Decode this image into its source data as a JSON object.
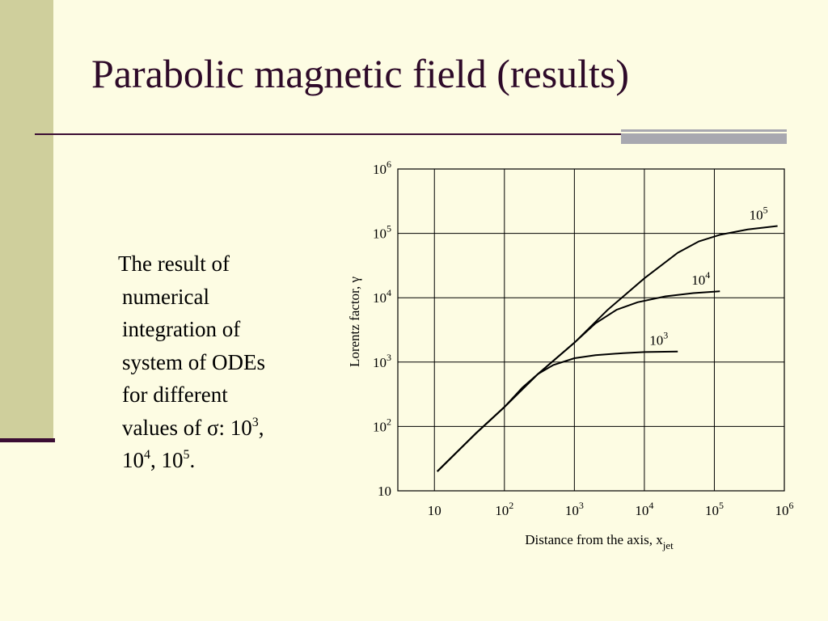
{
  "slide": {
    "title": "Parabolic magnetic field (results)",
    "body": {
      "line1": "The result of",
      "line2": "numerical",
      "line3": "integration of",
      "line4": "system of ODEs",
      "line5": "for different",
      "line6_prefix": "values of σ: 10",
      "line6_exp": "3",
      "line6_suffix": ",",
      "line7_base1": "10",
      "line7_exp1": "4",
      "line7_mid": ", 10",
      "line7_exp2": "5",
      "line7_suffix": "."
    }
  },
  "chart_data": {
    "type": "line",
    "xscale": "log",
    "yscale": "log",
    "xlim": [
      3,
      1000000
    ],
    "ylim": [
      10,
      1000000
    ],
    "grid": true,
    "xlabel": "Distance from the axis, x",
    "xlabel_subscript": "jet",
    "ylabel": "Lorentz factor, γ",
    "x_ticks": [
      {
        "value": 10,
        "base": "10",
        "exp": ""
      },
      {
        "value": 100,
        "base": "10",
        "exp": "2"
      },
      {
        "value": 1000,
        "base": "10",
        "exp": "3"
      },
      {
        "value": 10000,
        "base": "10",
        "exp": "4"
      },
      {
        "value": 100000,
        "base": "10",
        "exp": "5"
      },
      {
        "value": 1000000,
        "base": "10",
        "exp": "6"
      }
    ],
    "y_ticks": [
      {
        "value": 10,
        "base": "10",
        "exp": ""
      },
      {
        "value": 100,
        "base": "10",
        "exp": "2"
      },
      {
        "value": 1000,
        "base": "10",
        "exp": "3"
      },
      {
        "value": 10000,
        "base": "10",
        "exp": "4"
      },
      {
        "value": 100000,
        "base": "10",
        "exp": "5"
      },
      {
        "value": 1000000,
        "base": "10",
        "exp": "6"
      }
    ],
    "series": [
      {
        "label_base": "10",
        "label_exp": "3",
        "points": [
          [
            11,
            20
          ],
          [
            20,
            38
          ],
          [
            40,
            80
          ],
          [
            100,
            200
          ],
          [
            180,
            400
          ],
          [
            300,
            650
          ],
          [
            500,
            900
          ],
          [
            1000,
            1150
          ],
          [
            2000,
            1280
          ],
          [
            5000,
            1380
          ],
          [
            10000,
            1430
          ],
          [
            30000,
            1460
          ]
        ]
      },
      {
        "label_base": "10",
        "label_exp": "4",
        "points": [
          [
            11,
            20
          ],
          [
            40,
            80
          ],
          [
            100,
            200
          ],
          [
            300,
            650
          ],
          [
            1000,
            2000
          ],
          [
            2000,
            4000
          ],
          [
            4000,
            6500
          ],
          [
            8000,
            8500
          ],
          [
            20000,
            10500
          ],
          [
            50000,
            11800
          ],
          [
            120000,
            12600
          ]
        ]
      },
      {
        "label_base": "10",
        "label_exp": "5",
        "points": [
          [
            11,
            20
          ],
          [
            40,
            80
          ],
          [
            100,
            200
          ],
          [
            300,
            650
          ],
          [
            1000,
            2000
          ],
          [
            3000,
            6500
          ],
          [
            10000,
            20000
          ],
          [
            30000,
            50000
          ],
          [
            60000,
            75000
          ],
          [
            120000,
            95000
          ],
          [
            300000,
            115000
          ],
          [
            800000,
            130000
          ]
        ]
      }
    ]
  }
}
